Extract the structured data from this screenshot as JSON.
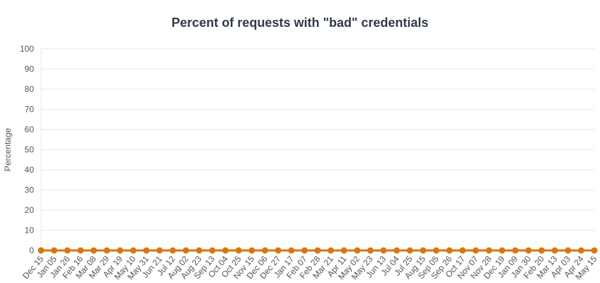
{
  "chart_data": {
    "type": "line",
    "title": "Percent of requests with \"bad\" credentials",
    "xlabel": "",
    "ylabel": "Percentage",
    "ylim": [
      0,
      100
    ],
    "yticks": [
      0,
      10,
      20,
      30,
      40,
      50,
      60,
      70,
      80,
      90,
      100
    ],
    "grid": true,
    "legend": "none",
    "categories": [
      "Dec 15",
      "Jan 05",
      "Jan 26",
      "Feb 16",
      "Mar 08",
      "Mar 29",
      "Apr 19",
      "May 10",
      "May 31",
      "Jun 21",
      "Jul 12",
      "Aug 02",
      "Aug 23",
      "Sep 13",
      "Oct 04",
      "Oct 25",
      "Nov 15",
      "Dec 06",
      "Dec 27",
      "Jan 17",
      "Feb 07",
      "Feb 28",
      "Mar 21",
      "Apr 11",
      "May 02",
      "May 23",
      "Jun 13",
      "Jul 04",
      "Jul 25",
      "Aug 15",
      "Sep 05",
      "Sep 26",
      "Oct 17",
      "Nov 07",
      "Nov 28",
      "Dec 19",
      "Jan 09",
      "Jan 30",
      "Feb 20",
      "Mar 13",
      "Apr 03",
      "Apr 24",
      "May 15"
    ],
    "series": [
      {
        "color": "#d9760d",
        "values": [
          0,
          0,
          0,
          0,
          0,
          0,
          0,
          0,
          0,
          0,
          0,
          0,
          0,
          0,
          0,
          0,
          0,
          0,
          0,
          0,
          0,
          0,
          0,
          0,
          0,
          0,
          0,
          0,
          0,
          0,
          0,
          0,
          0,
          0,
          0,
          0,
          0,
          0,
          0,
          0,
          0,
          0,
          0
        ]
      }
    ]
  }
}
